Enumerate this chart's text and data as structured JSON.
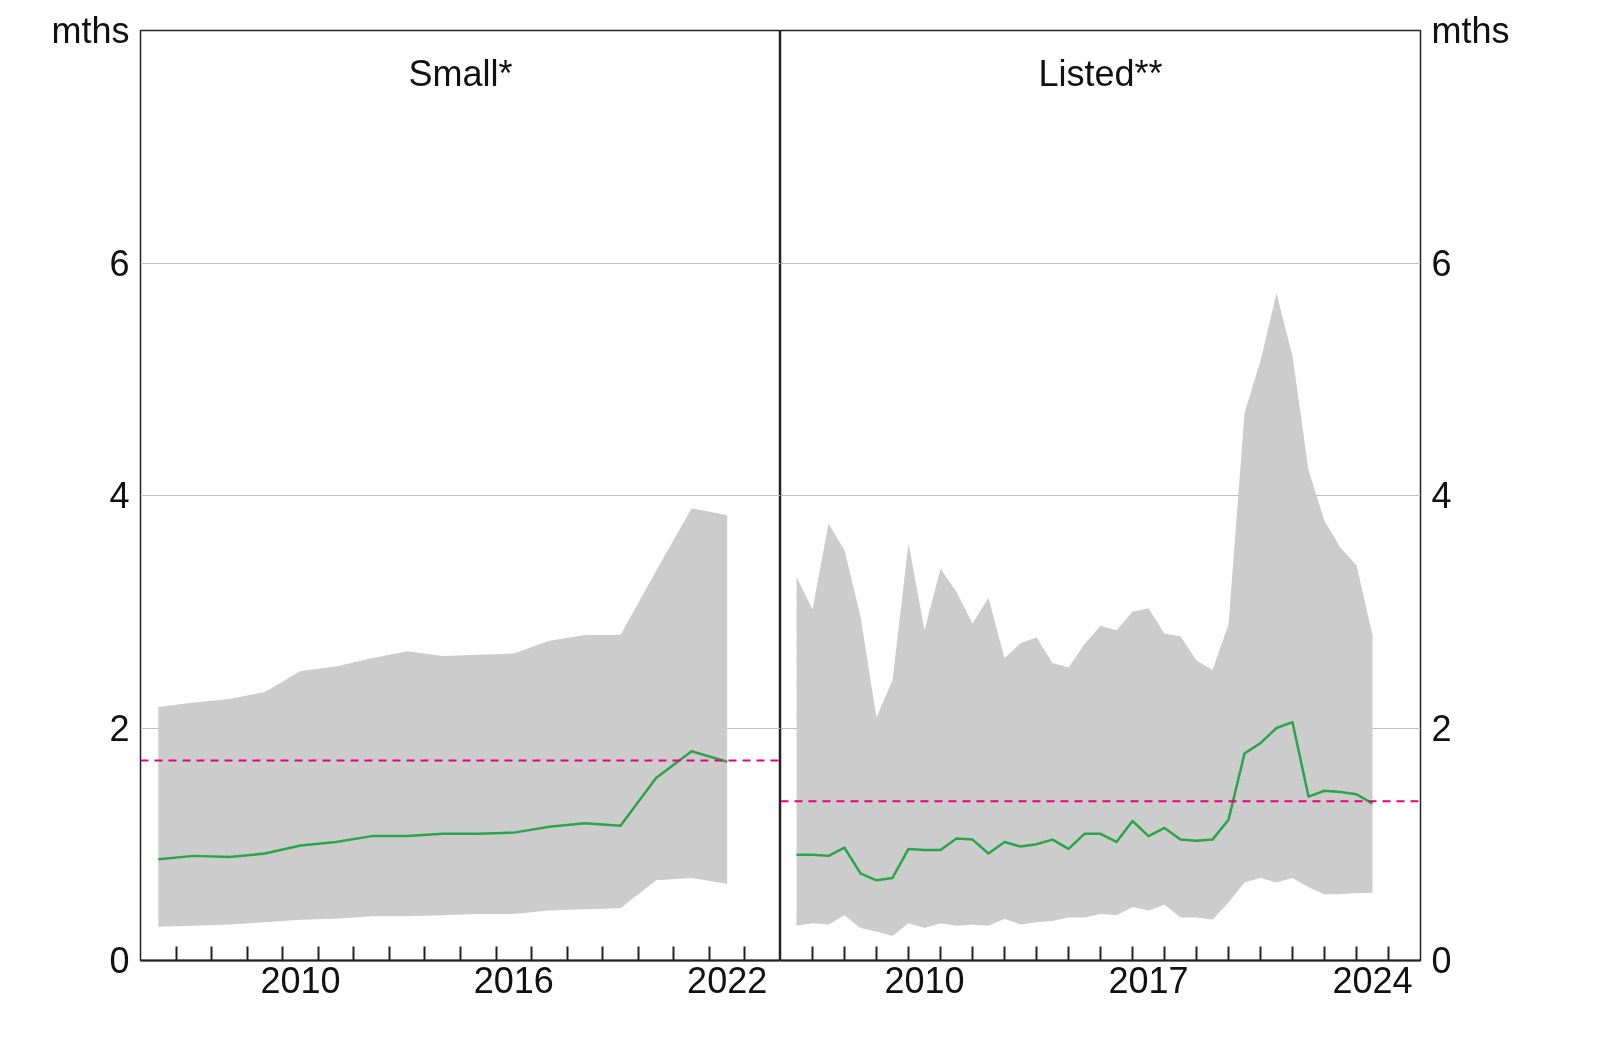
{
  "chart_data": [
    {
      "type": "line",
      "title": "Small*",
      "ylabel": "mths",
      "xlim": [
        2006,
        2024
      ],
      "ylim": [
        0,
        8
      ],
      "yticks": [
        0,
        2,
        4,
        6
      ],
      "grid": "y",
      "xticks": [
        {
          "value": 2007,
          "label": null
        },
        {
          "value": 2008,
          "label": null
        },
        {
          "value": 2009,
          "label": null
        },
        {
          "value": 2010,
          "label": null
        },
        {
          "value": 2011,
          "label": null
        },
        {
          "value": 2012,
          "label": null
        },
        {
          "value": 2013,
          "label": null
        },
        {
          "value": 2014,
          "label": null
        },
        {
          "value": 2015,
          "label": null
        },
        {
          "value": 2016,
          "label": null
        },
        {
          "value": 2017,
          "label": null
        },
        {
          "value": 2018,
          "label": null
        },
        {
          "value": 2019,
          "label": null
        },
        {
          "value": 2020,
          "label": null
        },
        {
          "value": 2021,
          "label": null
        },
        {
          "value": 2022,
          "label": null
        },
        {
          "value": 2023,
          "label": null
        },
        {
          "value": 2010.5,
          "label": "2010"
        },
        {
          "value": 2016.5,
          "label": "2016"
        },
        {
          "value": 2022.5,
          "label": "2022"
        }
      ],
      "x": [
        2006.5,
        2007.5,
        2008.5,
        2009.5,
        2010.5,
        2011.5,
        2012.5,
        2013.5,
        2014.5,
        2015.5,
        2016.5,
        2017.5,
        2018.5,
        2019.5,
        2020.5,
        2021.5,
        2022.5
      ],
      "series": [
        {
          "color": "#2ca44a",
          "values": [
            0.87,
            0.9,
            0.89,
            0.92,
            0.99,
            1.02,
            1.07,
            1.07,
            1.09,
            1.09,
            1.1,
            1.15,
            1.18,
            1.16,
            1.57,
            1.8,
            1.71
          ],
          "lower": [
            0.29,
            0.3,
            0.31,
            0.33,
            0.35,
            0.36,
            0.38,
            0.38,
            0.39,
            0.4,
            0.4,
            0.43,
            0.44,
            0.45,
            0.69,
            0.71,
            0.66
          ],
          "upper": [
            2.18,
            2.22,
            2.25,
            2.31,
            2.49,
            2.53,
            2.6,
            2.66,
            2.62,
            2.63,
            2.64,
            2.75,
            2.8,
            2.8,
            3.35,
            3.89,
            3.83
          ]
        }
      ],
      "ref_lines": [
        {
          "axis": "y",
          "value": 1.72,
          "color": "#e6007e",
          "line_style": "dashed"
        }
      ]
    },
    {
      "type": "line",
      "title": "Listed**",
      "y2label": "mths",
      "xlim": [
        2006,
        2026
      ],
      "y2lim": [
        0,
        8
      ],
      "y2ticks": [
        0,
        2,
        4,
        6
      ],
      "grid": "y",
      "xticks": [
        {
          "value": 2007,
          "label": null
        },
        {
          "value": 2008,
          "label": null
        },
        {
          "value": 2009,
          "label": null
        },
        {
          "value": 2010,
          "label": null
        },
        {
          "value": 2011,
          "label": null
        },
        {
          "value": 2012,
          "label": null
        },
        {
          "value": 2013,
          "label": null
        },
        {
          "value": 2014,
          "label": null
        },
        {
          "value": 2015,
          "label": null
        },
        {
          "value": 2016,
          "label": null
        },
        {
          "value": 2017,
          "label": null
        },
        {
          "value": 2018,
          "label": null
        },
        {
          "value": 2019,
          "label": null
        },
        {
          "value": 2020,
          "label": null
        },
        {
          "value": 2021,
          "label": null
        },
        {
          "value": 2022,
          "label": null
        },
        {
          "value": 2023,
          "label": null
        },
        {
          "value": 2024,
          "label": null
        },
        {
          "value": 2025,
          "label": null
        },
        {
          "value": 2010.5,
          "label": "2010"
        },
        {
          "value": 2017.5,
          "label": "2017"
        },
        {
          "value": 2024.5,
          "label": "2024"
        }
      ],
      "x": [
        2006.5,
        2007.0,
        2007.5,
        2008.0,
        2008.5,
        2009.0,
        2009.5,
        2010.0,
        2010.5,
        2011.0,
        2011.5,
        2012.0,
        2012.5,
        2013.0,
        2013.5,
        2014.0,
        2014.5,
        2015.0,
        2015.5,
        2016.0,
        2016.5,
        2017.0,
        2017.5,
        2018.0,
        2018.5,
        2019.0,
        2019.5,
        2020.0,
        2020.5,
        2021.0,
        2021.5,
        2022.0,
        2022.5,
        2023.0,
        2023.5,
        2024.0,
        2024.5
      ],
      "series": [
        {
          "axis": "y2",
          "color": "#2ca44a",
          "values": [
            0.91,
            0.91,
            0.9,
            0.97,
            0.75,
            0.69,
            0.71,
            0.96,
            0.95,
            0.95,
            1.05,
            1.04,
            0.92,
            1.02,
            0.98,
            1.0,
            1.04,
            0.96,
            1.09,
            1.09,
            1.02,
            1.2,
            1.07,
            1.14,
            1.04,
            1.03,
            1.04,
            1.21,
            1.78,
            1.87,
            2.0,
            2.05,
            1.41,
            1.46,
            1.45,
            1.43,
            1.35
          ],
          "lower": [
            0.3,
            0.32,
            0.31,
            0.39,
            0.28,
            0.25,
            0.21,
            0.32,
            0.28,
            0.32,
            0.3,
            0.31,
            0.3,
            0.36,
            0.31,
            0.33,
            0.34,
            0.37,
            0.37,
            0.4,
            0.39,
            0.46,
            0.43,
            0.48,
            0.37,
            0.37,
            0.35,
            0.5,
            0.67,
            0.71,
            0.67,
            0.71,
            0.63,
            0.57,
            0.57,
            0.58,
            0.58
          ],
          "upper": [
            3.3,
            3.02,
            3.76,
            3.53,
            2.96,
            2.09,
            2.41,
            3.59,
            2.84,
            3.37,
            3.17,
            2.9,
            3.12,
            2.6,
            2.73,
            2.78,
            2.56,
            2.52,
            2.72,
            2.88,
            2.84,
            3.0,
            3.03,
            2.81,
            2.79,
            2.58,
            2.5,
            2.89,
            4.71,
            5.16,
            5.74,
            5.2,
            4.22,
            3.78,
            3.55,
            3.4,
            2.8
          ]
        }
      ],
      "ref_lines": [
        {
          "axis": "y2",
          "value": 1.37,
          "color": "#e6007e",
          "line_style": "dashed"
        }
      ]
    }
  ]
}
